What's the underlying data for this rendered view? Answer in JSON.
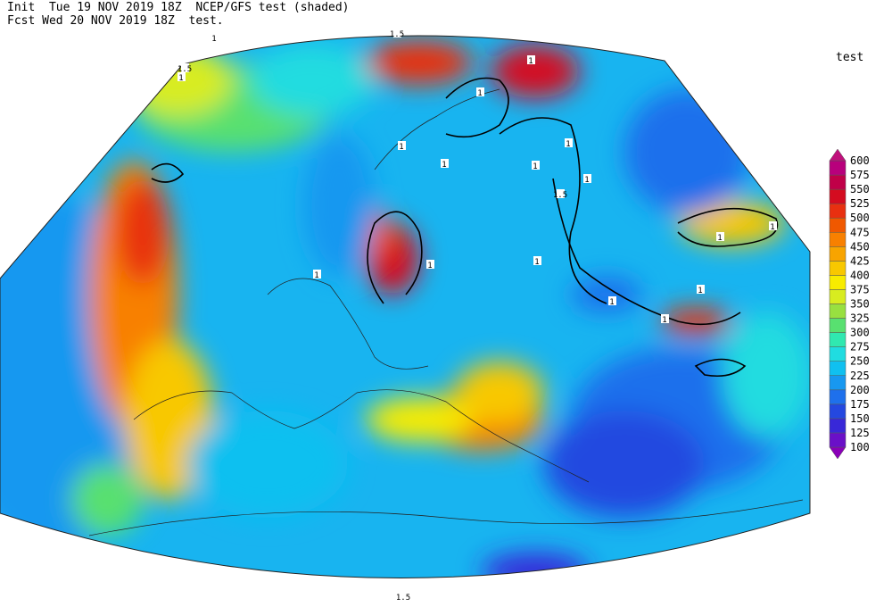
{
  "header": {
    "line1": "Init  Tue 19 NOV 2019 18Z  NCEP/GFS test (shaded)",
    "line2": "Fcst Wed 20 NOV 2019 18Z  test."
  },
  "legend": {
    "title": "test",
    "levels": [
      100,
      125,
      150,
      175,
      200,
      225,
      250,
      275,
      300,
      325,
      350,
      375,
      400,
      425,
      450,
      475,
      500,
      525,
      550,
      575,
      600
    ],
    "colors": [
      "#8a00b8",
      "#6a10c8",
      "#3828d8",
      "#2448e0",
      "#1e70ec",
      "#1898f0",
      "#10c0f0",
      "#20dce0",
      "#30e8b0",
      "#58e070",
      "#98e040",
      "#d8ec20",
      "#f8ec00",
      "#f8c800",
      "#f8a400",
      "#f88000",
      "#f05800",
      "#e83010",
      "#d40c20",
      "#c00048",
      "#b8007c",
      "#c0107c"
    ]
  },
  "contour_labels": [
    "1",
    "1.5",
    "1.5",
    "1",
    "1",
    "1",
    "1",
    "1",
    "1",
    "1",
    "1",
    "1.5",
    "1",
    "1",
    "1",
    "1",
    "1",
    "1",
    "1",
    "1",
    "1.5"
  ]
}
